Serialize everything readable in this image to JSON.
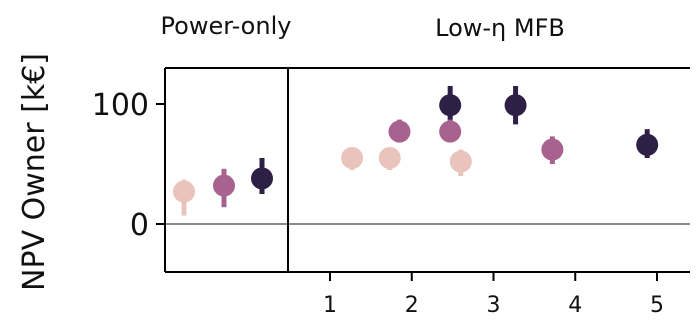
{
  "chart_data": [
    {
      "type": "scatter",
      "title": "Power-only",
      "ylabel": "NPV Owner [k€]",
      "ylim": [
        -40,
        130
      ],
      "yticks": [
        0,
        100
      ],
      "ytick_labels": [
        "0",
        "100"
      ],
      "xticks": [],
      "reference_line_y": 0,
      "points": [
        {
          "x": 1,
          "y": 27,
          "err_low": 7,
          "err_high": 37,
          "color": "#e8c4bc"
        },
        {
          "x": 2,
          "y": 32,
          "err_low": 14,
          "err_high": 46,
          "color": "#a8628f"
        },
        {
          "x": 3,
          "y": 38,
          "err_low": 25,
          "err_high": 55,
          "color": "#2d1f45"
        }
      ]
    },
    {
      "type": "scatter",
      "title": "Low-η MFB",
      "xlim": [
        0.4,
        5.5
      ],
      "ylim": [
        -40,
        130
      ],
      "xticks": [
        1,
        2,
        3,
        4,
        5
      ],
      "xtick_labels": [
        "1",
        "2",
        "3",
        "4",
        "5"
      ],
      "reference_line_y": 0,
      "points": [
        {
          "x": 1.27,
          "y": 55,
          "err_low": 45,
          "err_high": 62,
          "color": "#e8c4bc"
        },
        {
          "x": 1.73,
          "y": 55,
          "err_low": 45,
          "err_high": 62,
          "color": "#e8c4bc"
        },
        {
          "x": 1.85,
          "y": 77,
          "err_low": 68,
          "err_high": 87,
          "color": "#a8628f"
        },
        {
          "x": 2.47,
          "y": 99,
          "err_low": 83,
          "err_high": 115,
          "color": "#2d1f45"
        },
        {
          "x": 2.47,
          "y": 77,
          "err_low": 68,
          "err_high": 87,
          "color": "#a8628f"
        },
        {
          "x": 2.6,
          "y": 52,
          "err_low": 40,
          "err_high": 62,
          "color": "#e8c4bc"
        },
        {
          "x": 3.27,
          "y": 99,
          "err_low": 83,
          "err_high": 115,
          "color": "#2d1f45"
        },
        {
          "x": 3.72,
          "y": 62,
          "err_low": 50,
          "err_high": 73,
          "color": "#a8628f"
        },
        {
          "x": 4.88,
          "y": 66,
          "err_low": 55,
          "err_high": 79,
          "color": "#2d1f45"
        }
      ]
    }
  ]
}
